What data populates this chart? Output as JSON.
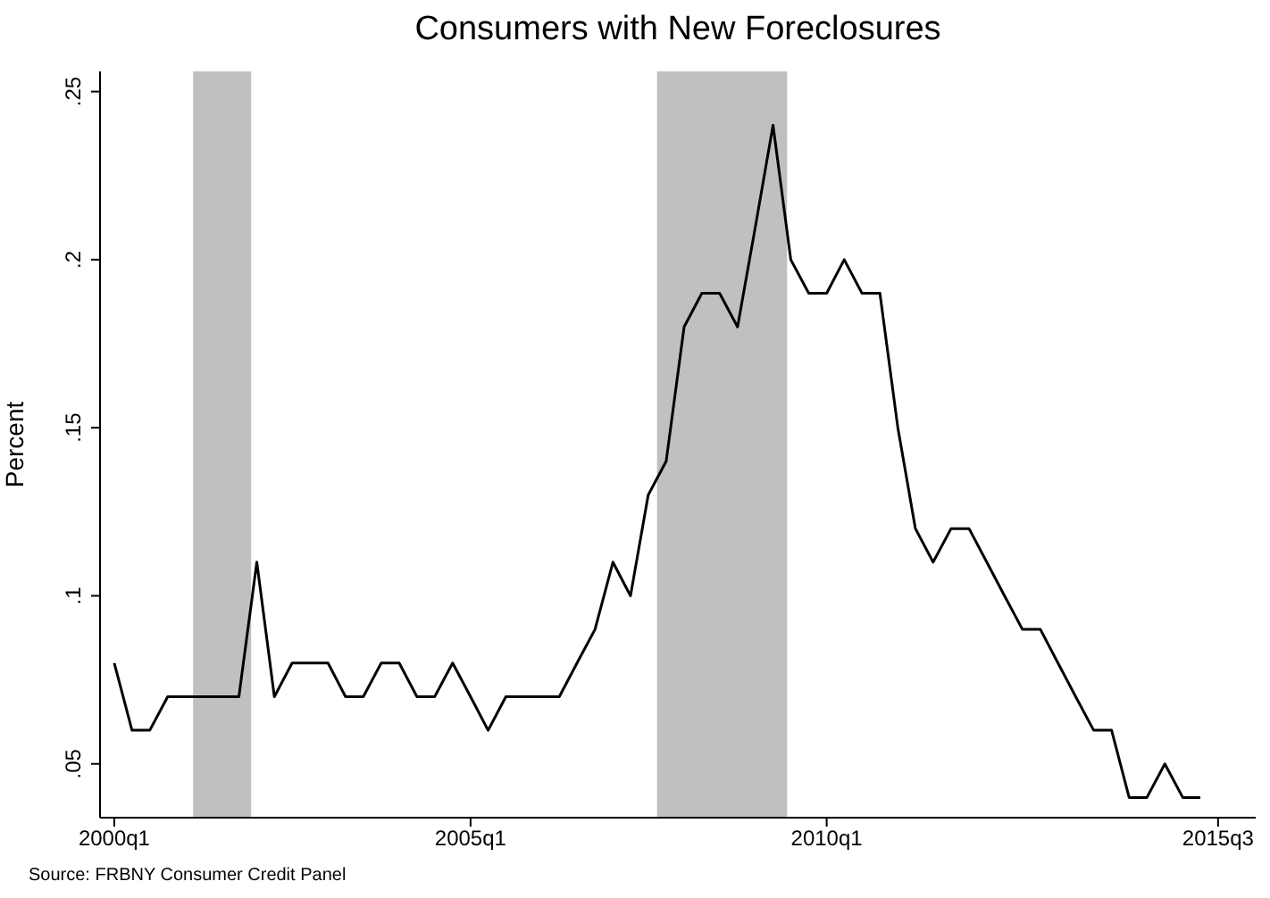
{
  "chart_data": {
    "type": "line",
    "title": "Consumers with New Foreclosures",
    "ylabel": "Percent",
    "annotations": [
      "Source: FRBNY Consumer Credit Panel"
    ],
    "x": [
      "2000-01",
      "2000-04",
      "2000-07",
      "2000-10",
      "2001-01",
      "2001-04",
      "2001-07",
      "2001-10",
      "2002-01",
      "2002-04",
      "2002-07",
      "2002-10",
      "2003-01",
      "2003-04",
      "2003-07",
      "2003-10",
      "2004-01",
      "2004-04",
      "2004-07",
      "2004-10",
      "2005-01",
      "2005-04",
      "2005-07",
      "2005-10",
      "2006-01",
      "2006-04",
      "2006-07",
      "2006-10",
      "2007-01",
      "2007-04",
      "2007-07",
      "2007-10",
      "2008-01",
      "2008-04",
      "2008-07",
      "2008-10",
      "2009-01",
      "2009-04",
      "2009-07",
      "2009-10",
      "2010-01",
      "2010-04",
      "2010-07",
      "2010-10",
      "2011-01",
      "2011-04",
      "2011-07",
      "2011-10",
      "2012-01",
      "2012-04",
      "2012-07",
      "2012-10",
      "2013-01",
      "2013-04",
      "2013-07",
      "2013-10",
      "2014-01",
      "2014-04",
      "2014-07",
      "2014-10",
      "2015-01",
      "2015-04"
    ],
    "series": [
      {
        "color": "#000000",
        "values": [
          0.08,
          0.06,
          0.06,
          0.07,
          0.07,
          0.07,
          0.07,
          0.07,
          0.11,
          0.07,
          0.08,
          0.08,
          0.08,
          0.07,
          0.07,
          0.08,
          0.08,
          0.07,
          0.07,
          0.08,
          0.07,
          0.06,
          0.07,
          0.07,
          0.07,
          0.07,
          0.08,
          0.09,
          0.11,
          0.1,
          0.13,
          0.14,
          0.18,
          0.19,
          0.19,
          0.18,
          0.21,
          0.24,
          0.2,
          0.19,
          0.19,
          0.2,
          0.19,
          0.19,
          0.15,
          0.12,
          0.11,
          0.12,
          0.12,
          0.11,
          0.1,
          0.09,
          0.09,
          0.08,
          0.07,
          0.06,
          0.06,
          0.04,
          0.04,
          0.05,
          0.04,
          0.04
        ]
      }
    ],
    "xlim": [
      "1999-10-20",
      "2016-01-10"
    ],
    "xticks": [
      {
        "value": "2000-01",
        "label": "2000q1"
      },
      {
        "value": "2005-01",
        "label": "2005q1"
      },
      {
        "value": "2010-01",
        "label": "2010q1"
      },
      {
        "value": "2015-07",
        "label": "2015q3"
      }
    ],
    "ylim": [
      0.034,
      0.256
    ],
    "yticks": [
      {
        "value": 0.05,
        "label": ".05"
      },
      {
        "value": 0.1,
        "label": ".1"
      },
      {
        "value": 0.15,
        "label": ".15"
      },
      {
        "value": 0.2,
        "label": ".2"
      },
      {
        "value": 0.25,
        "label": ".25"
      }
    ],
    "bands": [
      {
        "axis": "x",
        "from": "2001-02-08",
        "to": "2001-12-03",
        "color": "#c0c0c0"
      },
      {
        "axis": "x",
        "from": "2007-08-15",
        "to": "2009-06-12",
        "color": "#c0c0c0"
      }
    ],
    "marker": "none",
    "line_style": "solid"
  }
}
